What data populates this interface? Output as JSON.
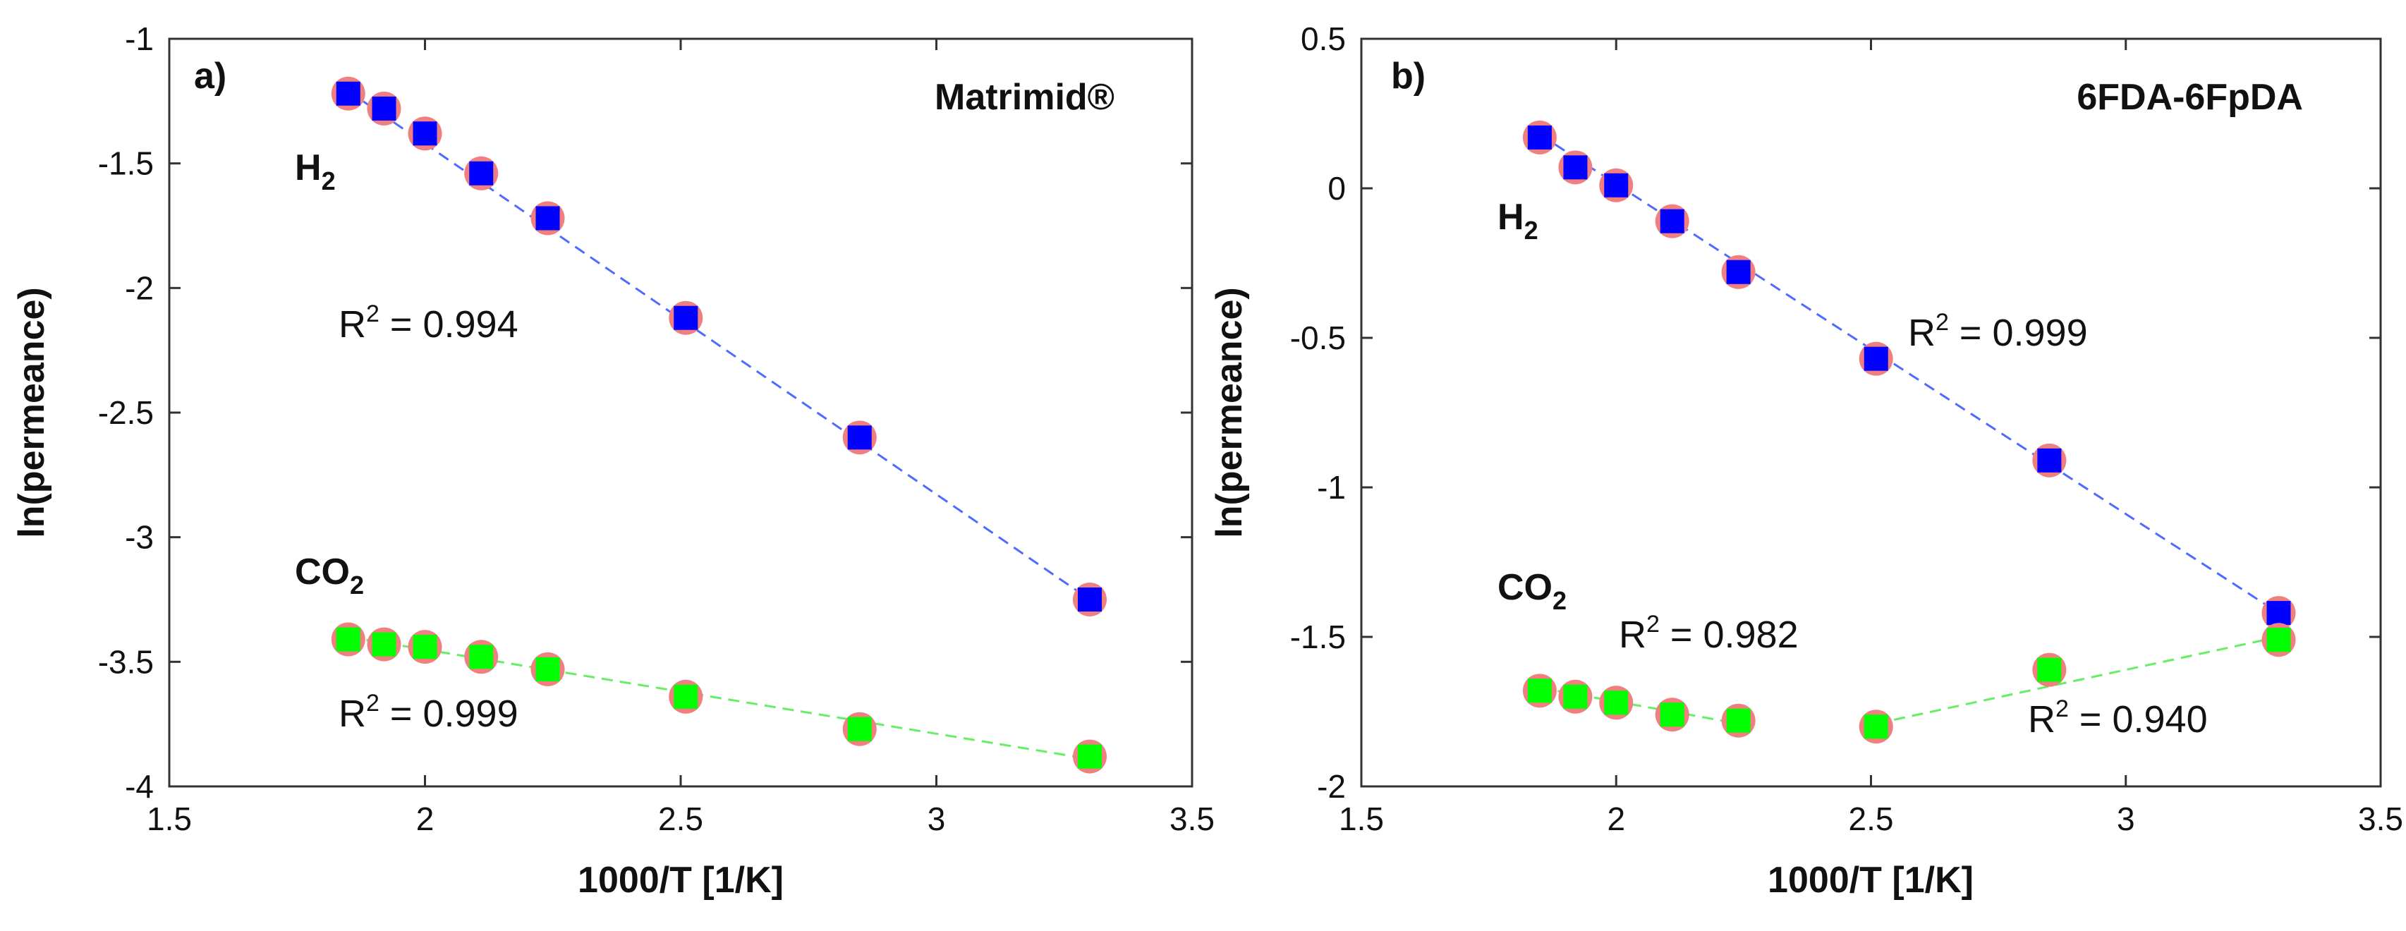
{
  "chart_data": [
    {
      "type": "scatter",
      "panel_label": "a)",
      "title": "Matrimid®",
      "xlabel": "1000/T [1/K]",
      "ylabel": "ln(permeance)",
      "xlim": [
        1.5,
        3.5
      ],
      "ylim": [
        -4,
        -1
      ],
      "xticks": [
        "1.5",
        "2",
        "2.5",
        "3",
        "3.5"
      ],
      "yticks": [
        "-4",
        "-3.5",
        "-3",
        "-2.5",
        "-2",
        "-1.5",
        "-1"
      ],
      "series": [
        {
          "name": "H2",
          "label_main": "H",
          "label_sub": "2",
          "color": "#0000ff",
          "fit_color": "#4f6bff",
          "x": [
            1.85,
            1.92,
            2.0,
            2.11,
            2.24,
            2.51,
            2.85,
            3.3
          ],
          "y": [
            -1.22,
            -1.28,
            -1.38,
            -1.54,
            -1.72,
            -2.12,
            -2.6,
            -3.25
          ],
          "fits": [
            {
              "x": [
                1.85,
                3.3
              ],
              "y": [
                -1.21,
                -3.25
              ]
            }
          ],
          "r2": [
            {
              "label": "R² = 0.994",
              "base": "R",
              "sup": "2",
              "rest": " = 0.994"
            }
          ]
        },
        {
          "name": "CO2",
          "label_main": "CO",
          "label_sub": "2",
          "color": "#00ff00",
          "fit_color": "#66ee66",
          "x": [
            1.85,
            1.92,
            2.0,
            2.11,
            2.24,
            2.51,
            2.85,
            3.3
          ],
          "y": [
            -3.41,
            -3.43,
            -3.44,
            -3.48,
            -3.53,
            -3.64,
            -3.77,
            -3.88
          ],
          "fits": [
            {
              "x": [
                1.85,
                3.3
              ],
              "y": [
                -3.4,
                -3.89
              ]
            }
          ],
          "r2": [
            {
              "label": "R² = 0.999",
              "base": "R",
              "sup": "2",
              "rest": " = 0.999"
            }
          ]
        }
      ]
    },
    {
      "type": "scatter",
      "panel_label": "b)",
      "title": "6FDA-6FpDA",
      "xlabel": "1000/T [1/K]",
      "ylabel": "ln(permeance)",
      "xlim": [
        1.5,
        3.5
      ],
      "ylim": [
        -2,
        0.5
      ],
      "xticks": [
        "1.5",
        "2",
        "2.5",
        "3",
        "3.5"
      ],
      "yticks": [
        "-2",
        "-1.5",
        "-1",
        "-0.5",
        "0",
        "0.5"
      ],
      "series": [
        {
          "name": "H2",
          "label_main": "H",
          "label_sub": "2",
          "color": "#0000ff",
          "fit_color": "#4f6bff",
          "x": [
            1.85,
            1.92,
            2.0,
            2.11,
            2.24,
            2.51,
            2.85,
            3.3
          ],
          "y": [
            0.17,
            0.07,
            0.01,
            -0.11,
            -0.28,
            -0.57,
            -0.91,
            -1.42
          ],
          "fits": [
            {
              "x": [
                1.85,
                3.3
              ],
              "y": [
                0.18,
                -1.42
              ]
            }
          ],
          "r2": [
            {
              "label": "R² = 0.999",
              "base": "R",
              "sup": "2",
              "rest": " = 0.999"
            }
          ]
        },
        {
          "name": "CO2",
          "label_main": "CO",
          "label_sub": "2",
          "color": "#00ff00",
          "fit_color": "#66ee66",
          "x": [
            1.85,
            1.92,
            2.0,
            2.11,
            2.24,
            2.51,
            2.85,
            3.3
          ],
          "y": [
            -1.68,
            -1.7,
            -1.72,
            -1.76,
            -1.78,
            -1.8,
            -1.61,
            -1.51
          ],
          "fits": [
            {
              "x": [
                1.85,
                2.24
              ],
              "y": [
                -1.67,
                -1.79
              ]
            },
            {
              "x": [
                2.51,
                3.3
              ],
              "y": [
                -1.79,
                -1.5
              ]
            }
          ],
          "r2": [
            {
              "label": "R² = 0.982",
              "base": "R",
              "sup": "2",
              "rest": " = 0.982"
            },
            {
              "label": "R² = 0.940",
              "base": "R",
              "sup": "2",
              "rest": " = 0.940"
            }
          ]
        }
      ]
    }
  ],
  "style": {
    "errorbar_color": "#f08080",
    "frame_color": "#333333"
  }
}
